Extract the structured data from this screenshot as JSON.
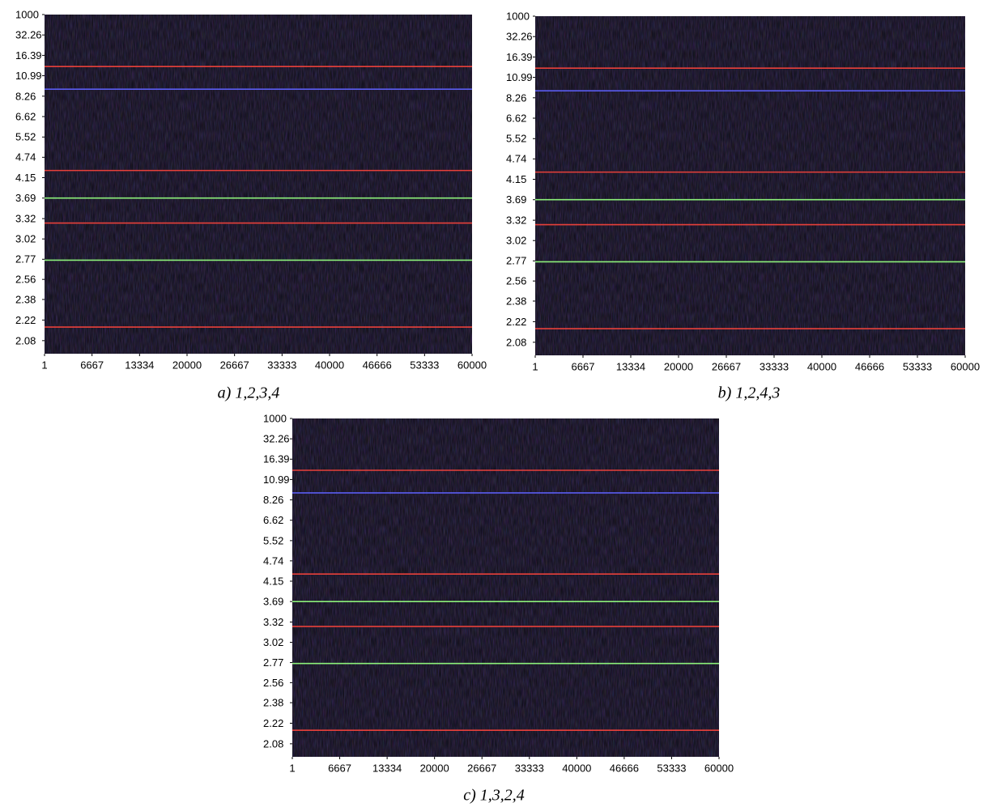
{
  "chart_data": [
    {
      "type": "heatmap",
      "caption": "a) 1,2,3,4",
      "xlim": [
        1,
        60000
      ],
      "xticks": [
        1,
        6667,
        13334,
        20000,
        26667,
        33333,
        40000,
        46666,
        53333,
        60000
      ],
      "yscale": "reciprocal",
      "ylim": [
        1000,
        2
      ],
      "yticks": [
        1000,
        32.26,
        16.39,
        10.99,
        8.26,
        6.62,
        5.52,
        4.74,
        4.15,
        3.69,
        3.32,
        3.02,
        2.77,
        2.56,
        2.38,
        2.22,
        2.08
      ],
      "lines": {
        "values": [
          12.92,
          9.03,
          4.34,
          3.69,
          3.25,
          2.76,
          2.17
        ],
        "colors": [
          "#e8403a",
          "#5a5cf0",
          "#e8403a",
          "#8cf07a",
          "#e8403a",
          "#8cf07a",
          "#e8403a"
        ]
      }
    },
    {
      "type": "heatmap",
      "caption": "b) 1,2,4,3",
      "xlim": [
        1,
        60000
      ],
      "xticks": [
        1,
        6667,
        13334,
        20000,
        26667,
        33333,
        40000,
        46666,
        53333,
        60000
      ],
      "yscale": "reciprocal",
      "ylim": [
        1000,
        2
      ],
      "yticks": [
        1000,
        32.26,
        16.39,
        10.99,
        8.26,
        6.62,
        5.52,
        4.74,
        4.15,
        3.69,
        3.32,
        3.02,
        2.77,
        2.56,
        2.38,
        2.22,
        2.08
      ],
      "lines": {
        "values": [
          12.92,
          9.03,
          4.34,
          3.69,
          3.25,
          2.76,
          2.17
        ],
        "colors": [
          "#e8403a",
          "#5a5cf0",
          "#e8403a",
          "#8cf07a",
          "#e8403a",
          "#8cf07a",
          "#e8403a"
        ]
      }
    },
    {
      "type": "heatmap",
      "caption": "c) 1,3,2,4",
      "xlim": [
        1,
        60000
      ],
      "xticks": [
        1,
        6667,
        13334,
        20000,
        26667,
        33333,
        40000,
        46666,
        53333,
        60000
      ],
      "yscale": "reciprocal",
      "ylim": [
        1000,
        2
      ],
      "yticks": [
        1000,
        32.26,
        16.39,
        10.99,
        8.26,
        6.62,
        5.52,
        4.74,
        4.15,
        3.69,
        3.32,
        3.02,
        2.77,
        2.56,
        2.38,
        2.22,
        2.08
      ],
      "lines": {
        "values": [
          12.92,
          9.03,
          4.34,
          3.69,
          3.25,
          2.76,
          2.17
        ],
        "colors": [
          "#e8403a",
          "#5a5cf0",
          "#e8403a",
          "#8cf07a",
          "#e8403a",
          "#8cf07a",
          "#e8403a"
        ]
      }
    }
  ]
}
